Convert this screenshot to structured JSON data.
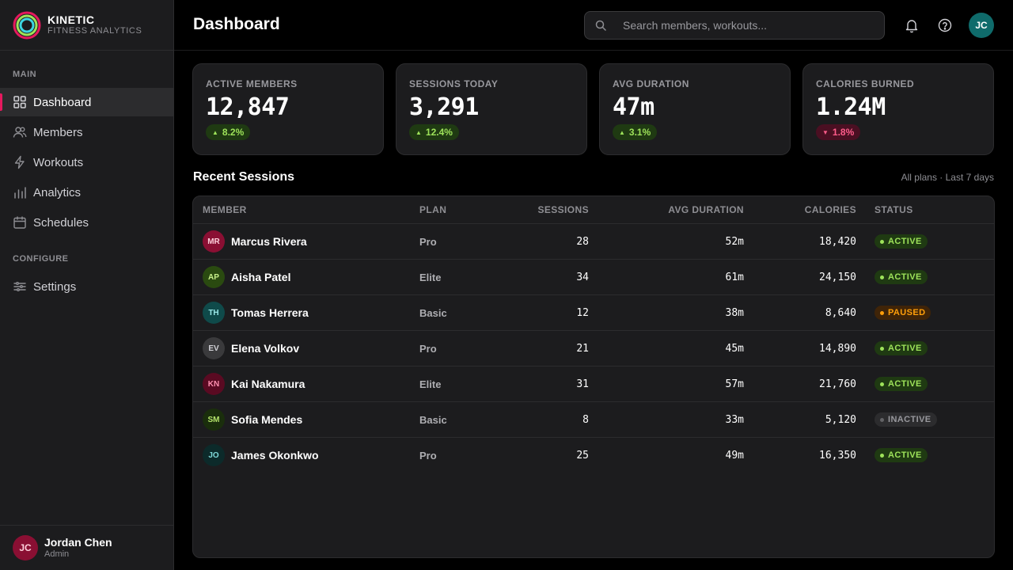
{
  "brand": {
    "name": "KINETIC",
    "subtitle": "FITNESS ANALYTICS"
  },
  "sidebar": {
    "sections": [
      {
        "label": "MAIN"
      },
      {
        "label": "CONFIGURE"
      }
    ],
    "items": [
      {
        "label": "Dashboard",
        "icon": "grid-icon",
        "active": true
      },
      {
        "label": "Members",
        "icon": "users-icon"
      },
      {
        "label": "Workouts",
        "icon": "bolt-icon"
      },
      {
        "label": "Analytics",
        "icon": "bar-chart-icon"
      },
      {
        "label": "Schedules",
        "icon": "calendar-icon"
      },
      {
        "label": "Settings",
        "icon": "sliders-icon"
      }
    ],
    "user": {
      "initials": "JC",
      "name": "Jordan Chen",
      "role": "Admin"
    }
  },
  "header": {
    "title": "Dashboard",
    "search_placeholder": "Search members, workouts...",
    "avatar_initials": "JC"
  },
  "stats": [
    {
      "label": "ACTIVE MEMBERS",
      "value": "12,847",
      "delta": "8.2%",
      "trend": "up"
    },
    {
      "label": "SESSIONS TODAY",
      "value": "3,291",
      "delta": "12.4%",
      "trend": "up"
    },
    {
      "label": "AVG DURATION",
      "value": "47m",
      "delta": "3.1%",
      "trend": "up"
    },
    {
      "label": "CALORIES BURNED",
      "value": "1.24M",
      "delta": "1.8%",
      "trend": "down"
    }
  ],
  "sessions": {
    "title": "Recent Sessions",
    "meta": "All plans · Last 7 days",
    "columns": [
      "MEMBER",
      "PLAN",
      "SESSIONS",
      "AVG DURATION",
      "CALORIES",
      "STATUS"
    ],
    "rows": [
      {
        "initials": "MR",
        "name": "Marcus Rivera",
        "plan": "Pro",
        "sessions": "28",
        "avg": "52m",
        "calories": "18,420",
        "status": "ACTIVE",
        "avatar_bg": "#8a0f33",
        "avatar_fg": "#ffd0dc"
      },
      {
        "initials": "AP",
        "name": "Aisha Patel",
        "plan": "Elite",
        "sessions": "34",
        "avg": "61m",
        "calories": "24,150",
        "status": "ACTIVE",
        "avatar_bg": "#2a4a10",
        "avatar_fg": "#c8f08a"
      },
      {
        "initials": "TH",
        "name": "Tomas Herrera",
        "plan": "Basic",
        "sessions": "12",
        "avg": "38m",
        "calories": "8,640",
        "status": "PAUSED",
        "avatar_bg": "#0f4a4a",
        "avatar_fg": "#9ae8e8"
      },
      {
        "initials": "EV",
        "name": "Elena Volkov",
        "plan": "Pro",
        "sessions": "21",
        "avg": "45m",
        "calories": "14,890",
        "status": "ACTIVE",
        "avatar_bg": "#3a3a3c",
        "avatar_fg": "#d1d1d6"
      },
      {
        "initials": "KN",
        "name": "Kai Nakamura",
        "plan": "Elite",
        "sessions": "31",
        "avg": "57m",
        "calories": "21,760",
        "status": "ACTIVE",
        "avatar_bg": "#5a0a22",
        "avatar_fg": "#ff8fb0"
      },
      {
        "initials": "SM",
        "name": "Sofia Mendes",
        "plan": "Basic",
        "sessions": "8",
        "avg": "33m",
        "calories": "5,120",
        "status": "INACTIVE",
        "avatar_bg": "#1a2e0c",
        "avatar_fg": "#b4e36a"
      },
      {
        "initials": "JO",
        "name": "James Okonkwo",
        "plan": "Pro",
        "sessions": "25",
        "avg": "49m",
        "calories": "16,350",
        "status": "ACTIVE",
        "avatar_bg": "#0c2a2a",
        "avatar_fg": "#7fd9d9"
      }
    ]
  },
  "colors": {
    "accent": "#e5195e",
    "up": "#9ee35a",
    "down": "#ff5c8a",
    "paused": "#ff9f0a"
  }
}
